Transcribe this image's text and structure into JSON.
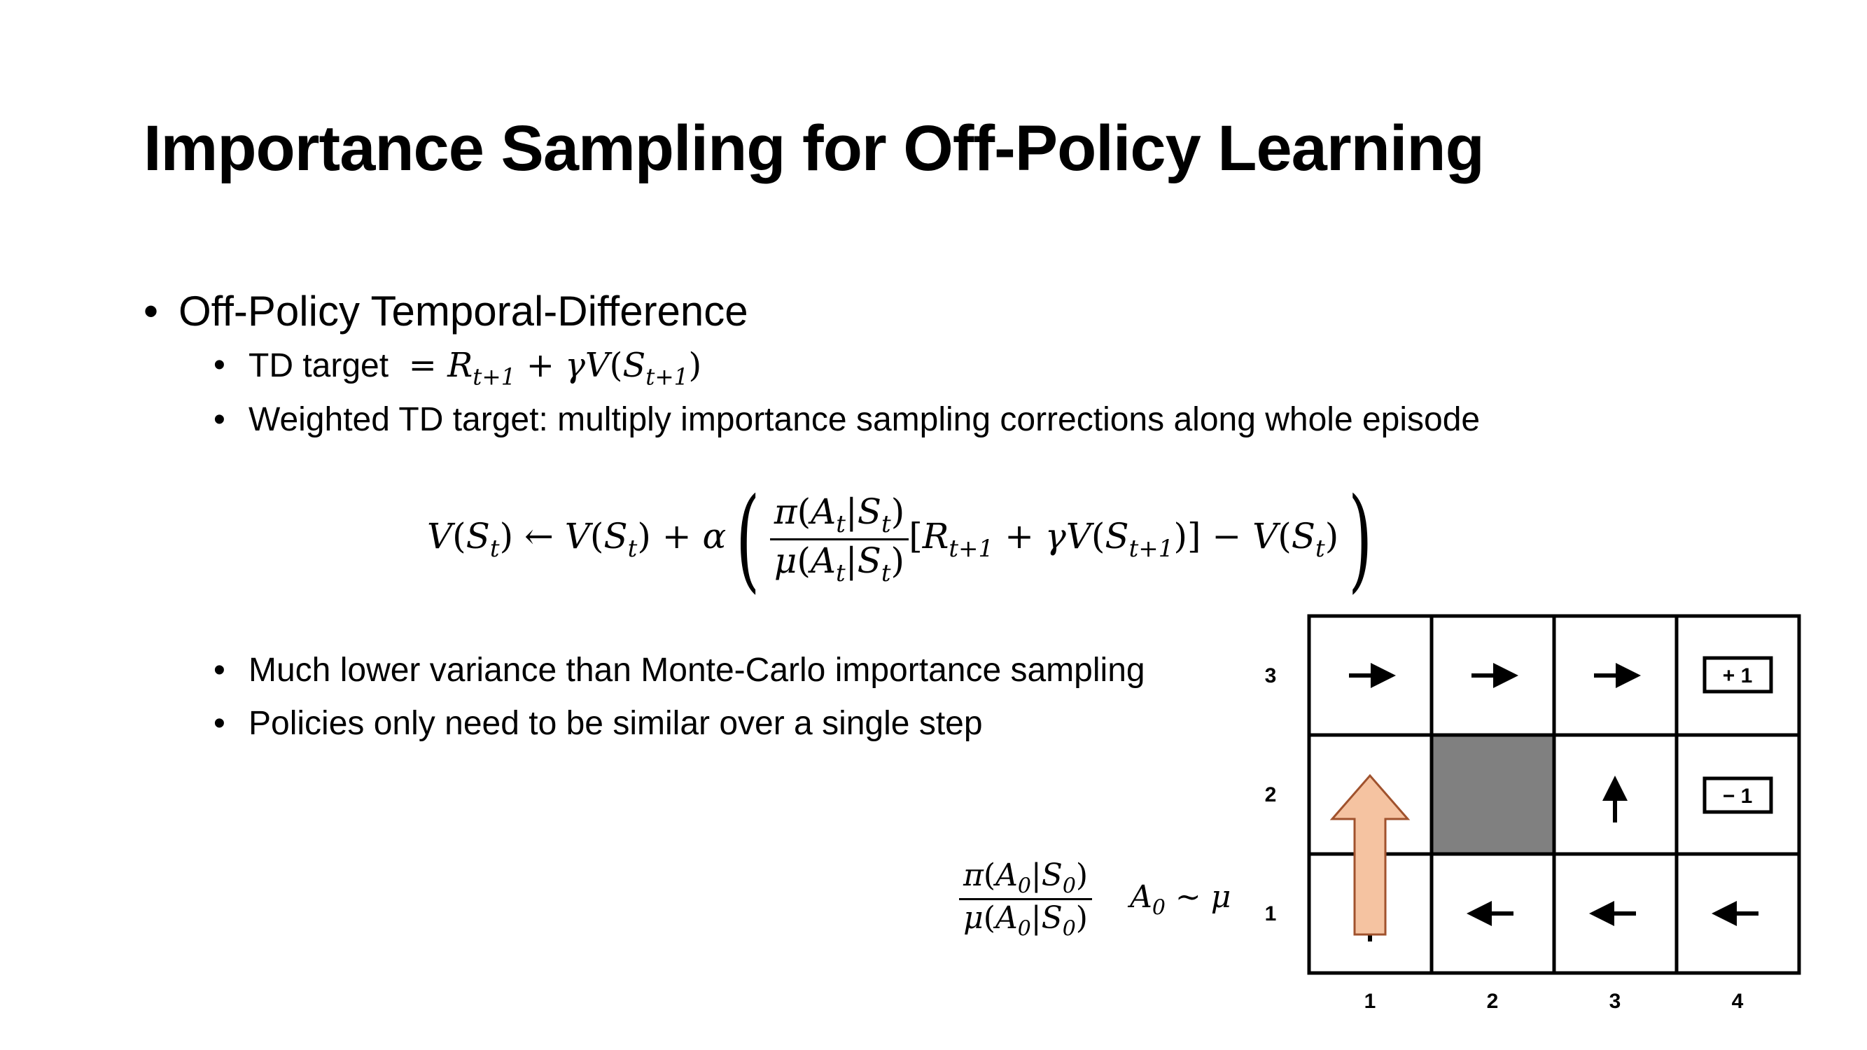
{
  "slide": {
    "title": "Importance Sampling for Off-Policy Learning",
    "bullet_glyph": "•",
    "bullets": {
      "main": "Off-Policy Temporal-Difference",
      "td_target_prefix": "TD target",
      "weighted": "Weighted TD target: multiply importance sampling corrections along whole episode",
      "variance": "Much lower variance than Monte-Carlo importance sampling",
      "policies": "Policies only need to be similar over a single step"
    }
  },
  "gridworld": {
    "col_labels": [
      "1",
      "2",
      "3",
      "4"
    ],
    "row_labels": [
      "3",
      "2",
      "1"
    ],
    "terminal_plus": "+ 1",
    "terminal_minus": "− 1",
    "cells": [
      {
        "row": 3,
        "col": 1,
        "content": "arrow-right"
      },
      {
        "row": 3,
        "col": 2,
        "content": "arrow-right"
      },
      {
        "row": 3,
        "col": 3,
        "content": "arrow-right"
      },
      {
        "row": 3,
        "col": 4,
        "content": "terminal +1"
      },
      {
        "row": 2,
        "col": 1,
        "content": "arrow-up"
      },
      {
        "row": 2,
        "col": 2,
        "content": "wall"
      },
      {
        "row": 2,
        "col": 3,
        "content": "arrow-up"
      },
      {
        "row": 2,
        "col": 4,
        "content": "terminal -1"
      },
      {
        "row": 1,
        "col": 1,
        "content": "arrow-up"
      },
      {
        "row": 1,
        "col": 2,
        "content": "arrow-left"
      },
      {
        "row": 1,
        "col": 3,
        "content": "arrow-left"
      },
      {
        "row": 1,
        "col": 4,
        "content": "arrow-left"
      }
    ],
    "wall_color": "#808080",
    "highlight_arrow_color": "#f5c3a1",
    "highlight_arrow_border": "#a0522d"
  }
}
